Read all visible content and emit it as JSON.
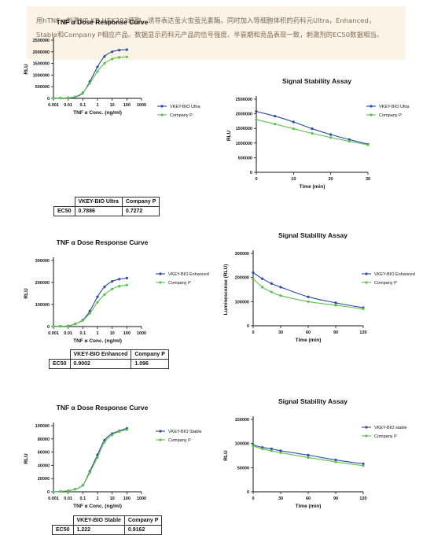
{
  "notice": {
    "text": "用hTNF α刺激NF-KB HEK293细胞，诱导表达萤火虫萤光素酶。同时加入等细胞体积的药科元Ultra，Enhanced，Stable和Company P相应产品。数据显示药科元产品的信号强度、半衰期和竞品表现一致，刺激剂的EC50数据相当。"
  },
  "colors": {
    "vkey": "#2b4aa0",
    "company_p": "#5cc04f"
  },
  "chart_data": [
    {
      "type": "line",
      "title": "TNF α Dose Response Curve",
      "xlabel": "TNF α Conc. (ng/ml)",
      "ylabel": "RLU",
      "xscale": "log",
      "xlim": [
        0.001,
        1000
      ],
      "ylim": [
        0,
        2500000
      ],
      "xticks": [
        "0.001",
        "0.01",
        "0.1",
        "1",
        "10",
        "100",
        "1000"
      ],
      "yticks": [
        "0",
        "500000",
        "1000000",
        "1500000",
        "2000000",
        "2500000"
      ],
      "legend": "right",
      "x": [
        0.001,
        0.003,
        0.01,
        0.03,
        0.1,
        0.3,
        1,
        3,
        10,
        30,
        100
      ],
      "series": [
        {
          "name": "VKEY-BIO Ultra",
          "values": [
            10000,
            12000,
            20000,
            60000,
            230000,
            720000,
            1350000,
            1800000,
            2000000,
            2070000,
            2090000
          ]
        },
        {
          "name": "Company P",
          "values": [
            10000,
            12000,
            25000,
            70000,
            250000,
            650000,
            1150000,
            1500000,
            1690000,
            1760000,
            1780000
          ]
        }
      ],
      "ec50": {
        "headers": [
          "VKEY-BIO Ultra",
          "Company P"
        ],
        "row_label": "EC50",
        "values": [
          "0.7886",
          "0.7272"
        ]
      }
    },
    {
      "type": "line",
      "title": "Signal Stability Assay",
      "xlabel": "Time (min)",
      "ylabel": "RLU",
      "xlim": [
        0,
        30
      ],
      "ylim": [
        0,
        2500000
      ],
      "xticks": [
        "0",
        "10",
        "20",
        "30"
      ],
      "yticks": [
        "0",
        "500000",
        "1000000",
        "1500000",
        "2000000",
        "2500000"
      ],
      "legend": "right",
      "x": [
        0,
        5,
        10,
        15,
        20,
        25,
        30
      ],
      "series": [
        {
          "name": "VKEY-BIO Ultra",
          "values": [
            2080000,
            1920000,
            1720000,
            1490000,
            1290000,
            1120000,
            960000
          ]
        },
        {
          "name": "Company P",
          "values": [
            1800000,
            1650000,
            1490000,
            1330000,
            1190000,
            1060000,
            940000
          ]
        }
      ]
    },
    {
      "type": "line",
      "title": "TNF α Dose Response Curve",
      "xlabel": "TNF α Conc. (ng/ml)",
      "ylabel": "RLU",
      "xscale": "log",
      "xlim": [
        0.001,
        1000
      ],
      "ylim": [
        0,
        300000
      ],
      "xticks": [
        "0.001",
        "0.01",
        "0.1",
        "1",
        "10",
        "100",
        "1000"
      ],
      "yticks": [
        "0",
        "100000",
        "200000",
        "300000"
      ],
      "legend": "right",
      "x": [
        0.001,
        0.003,
        0.01,
        0.03,
        0.1,
        0.3,
        1,
        3,
        10,
        30,
        100
      ],
      "series": [
        {
          "name": "VKEY-BIO Enhanced",
          "values": [
            1000,
            1500,
            3000,
            12000,
            30000,
            70000,
            135000,
            180000,
            205000,
            215000,
            220000
          ]
        },
        {
          "name": "Company P",
          "values": [
            1000,
            1500,
            3000,
            12000,
            28000,
            60000,
            110000,
            145000,
            170000,
            183000,
            188000
          ]
        }
      ],
      "ec50": {
        "headers": [
          "VKEY-BIO Enhanced",
          "Company P"
        ],
        "row_label": "EC50",
        "values": [
          "0.9002",
          "1.096"
        ]
      }
    },
    {
      "type": "line",
      "title": "Signal Stability Assay",
      "xlabel": "Time (min)",
      "ylabel": "Luminescense (RLU)",
      "xlim": [
        0,
        120
      ],
      "ylim": [
        0,
        300000
      ],
      "xticks": [
        "0",
        "30",
        "60",
        "90",
        "120"
      ],
      "yticks": [
        "0",
        "100000",
        "200000",
        "300000"
      ],
      "legend": "right",
      "x": [
        0,
        10,
        20,
        30,
        60,
        90,
        120
      ],
      "series": [
        {
          "name": "VKEY-BIO Enhanced",
          "values": [
            220000,
            195000,
            175000,
            160000,
            120000,
            95000,
            75000
          ]
        },
        {
          "name": "Company P",
          "values": [
            195000,
            160000,
            140000,
            125000,
            100000,
            85000,
            70000
          ]
        }
      ]
    },
    {
      "type": "line",
      "title": "TNF α Dose Response Curve",
      "xlabel": "TNF α Conc. (ng/ml)",
      "ylabel": "RLU",
      "xscale": "log",
      "xlim": [
        0.001,
        1000
      ],
      "ylim": [
        0,
        100000
      ],
      "xticks": [
        "0.001",
        "0.01",
        "0.1",
        "1",
        "10",
        "100",
        "1000"
      ],
      "yticks": [
        "0",
        "20000",
        "40000",
        "60000",
        "80000",
        "100000"
      ],
      "legend": "right",
      "x": [
        0.001,
        0.003,
        0.01,
        0.03,
        0.1,
        0.3,
        1,
        3,
        10,
        30,
        100
      ],
      "series": [
        {
          "name": "VKEY-BIO Stable",
          "values": [
            0,
            500,
            1500,
            4000,
            10000,
            31000,
            56000,
            78000,
            88000,
            92000,
            96000
          ]
        },
        {
          "name": "Company P",
          "values": [
            0,
            500,
            1500,
            4000,
            10000,
            29000,
            52000,
            75000,
            86000,
            91000,
            94000
          ]
        }
      ],
      "ec50": {
        "headers": [
          "VKEY-BIO Stable",
          "Company P"
        ],
        "row_label": "EC50",
        "values": [
          "1.222",
          "0.9162"
        ]
      }
    },
    {
      "type": "line",
      "title": "Signal Stability Assay",
      "xlabel": "Time (min)",
      "ylabel": "RLU",
      "xlim": [
        0,
        120
      ],
      "ylim": [
        0,
        150000
      ],
      "xticks": [
        "0",
        "30",
        "60",
        "90",
        "120"
      ],
      "yticks": [
        "0",
        "50000",
        "100000",
        "150000"
      ],
      "legend": "right",
      "x": [
        0,
        10,
        20,
        30,
        60,
        90,
        120
      ],
      "series": [
        {
          "name": "VKEY-BIO stable",
          "values": [
            97000,
            92000,
            89000,
            85000,
            76000,
            66000,
            58000
          ]
        },
        {
          "name": "Company P",
          "values": [
            95000,
            89000,
            85000,
            81000,
            71000,
            62000,
            54000
          ]
        }
      ]
    }
  ]
}
